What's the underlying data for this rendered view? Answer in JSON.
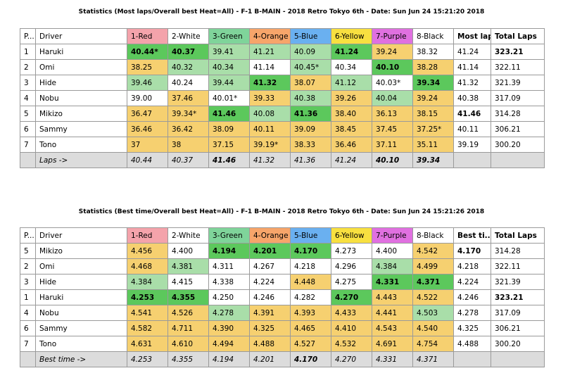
{
  "tables": [
    {
      "title": "Statistics (Most laps/Overall best Heat=All) - F-1 B-MAIN - 2018 Retro Tokyo 6th - Date: Sun Jun 24 15:21:20 2018",
      "headers": [
        "P...",
        "Driver",
        "1-Red",
        "2-White",
        "3-Green",
        "4-Orange",
        "5-Blue",
        "6-Yellow",
        "7-Purple",
        "8-Black",
        "Most laps",
        "Total Laps"
      ],
      "header_colors": [
        "#ffffff",
        "#ffffff",
        "#f4a3ab",
        "#ffffff",
        "#7fd49a",
        "#f7a56a",
        "#6ab0f0",
        "#f8e040",
        "#e070e0",
        "#ffffff",
        "#ffffff",
        "#ffffff"
      ],
      "rows": [
        {
          "pos": "1",
          "driver": "Haruki",
          "values": [
            "40.44*",
            "40.37",
            "39.41",
            "41.21",
            "40.09",
            "41.24",
            "39.24",
            "38.32"
          ],
          "best": "41.24",
          "total": "323.21",
          "fills": [
            "#5cc85c",
            "#5cc85c",
            "#a9dea9",
            "#a9dea9",
            "#a9dea9",
            "#5cc85c",
            "#f6d070",
            "#ffffff"
          ],
          "bold": [
            true,
            true,
            false,
            false,
            false,
            true,
            false,
            false,
            false,
            true
          ]
        },
        {
          "pos": "2",
          "driver": "Omi",
          "values": [
            "38.25",
            "40.32",
            "40.34",
            "41.14",
            "40.45*",
            "40.34",
            "40.10",
            "38.28"
          ],
          "best": "41.14",
          "total": "322.11",
          "fills": [
            "#f6d070",
            "#a9dea9",
            "#a9dea9",
            "#ffffff",
            "#a9dea9",
            "#ffffff",
            "#5cc85c",
            "#f6d070"
          ],
          "bold": [
            false,
            false,
            false,
            false,
            false,
            false,
            true,
            false,
            false,
            false
          ]
        },
        {
          "pos": "3",
          "driver": "Hide",
          "values": [
            "39.46",
            "40.24",
            "39.44",
            "41.32",
            "38.07",
            "41.12",
            "40.03*",
            "39.34"
          ],
          "best": "41.32",
          "total": "321.39",
          "fills": [
            "#a9dea9",
            "#ffffff",
            "#a9dea9",
            "#5cc85c",
            "#f6d070",
            "#a9dea9",
            "#ffffff",
            "#5cc85c"
          ],
          "bold": [
            false,
            false,
            false,
            true,
            false,
            false,
            false,
            true,
            false,
            false
          ]
        },
        {
          "pos": "4",
          "driver": "Nobu",
          "values": [
            "39.00",
            "37.46",
            "40.01*",
            "39.33",
            "40.38",
            "39.26",
            "40.04",
            "39.24"
          ],
          "best": "40.38",
          "total": "317.09",
          "fills": [
            "#ffffff",
            "#f6d070",
            "#ffffff",
            "#f6d070",
            "#a9dea9",
            "#f6d070",
            "#a9dea9",
            "#f6d070"
          ],
          "bold": [
            false,
            false,
            false,
            false,
            false,
            false,
            false,
            false,
            false,
            false
          ]
        },
        {
          "pos": "5",
          "driver": "Mikizo",
          "values": [
            "36.47",
            "39.34*",
            "41.46",
            "40.08",
            "41.36",
            "38.40",
            "36.13",
            "38.15"
          ],
          "best": "41.46",
          "total": "314.28",
          "fills": [
            "#f6d070",
            "#f6d070",
            "#5cc85c",
            "#a9dea9",
            "#5cc85c",
            "#f6d070",
            "#f6d070",
            "#f6d070"
          ],
          "bold": [
            false,
            false,
            true,
            false,
            true,
            false,
            false,
            false,
            true,
            false
          ]
        },
        {
          "pos": "6",
          "driver": "Sammy",
          "values": [
            "36.46",
            "36.42",
            "38.09",
            "40.11",
            "39.09",
            "38.45",
            "37.45",
            "37.25*"
          ],
          "best": "40.11",
          "total": "306.21",
          "fills": [
            "#f6d070",
            "#f6d070",
            "#f6d070",
            "#f6d070",
            "#f6d070",
            "#f6d070",
            "#f6d070",
            "#f6d070"
          ],
          "bold": [
            false,
            false,
            false,
            false,
            false,
            false,
            false,
            false,
            false,
            false
          ]
        },
        {
          "pos": "7",
          "driver": "Tono",
          "values": [
            "37",
            "38",
            "37.15",
            "39.19*",
            "38.33",
            "36.46",
            "37.11",
            "35.11"
          ],
          "best": "39.19",
          "total": "300.20",
          "fills": [
            "#f6d070",
            "#f6d070",
            "#f6d070",
            "#f6d070",
            "#f6d070",
            "#f6d070",
            "#f6d070",
            "#f6d070"
          ],
          "bold": [
            false,
            false,
            false,
            false,
            false,
            false,
            false,
            false,
            false,
            false
          ]
        }
      ],
      "footer": {
        "label": "Laps ->",
        "values": [
          "40.44",
          "40.37",
          "41.46",
          "41.32",
          "41.36",
          "41.24",
          "40.10",
          "39.34"
        ],
        "bold": [
          false,
          false,
          true,
          false,
          false,
          false,
          true,
          true
        ]
      }
    },
    {
      "title": "Statistics (Best time/Overall best Heat=All) - F-1 B-MAIN - 2018 Retro Tokyo 6th - Date: Sun Jun 24 15:21:26 2018",
      "headers": [
        "P...",
        "Driver",
        "1-Red",
        "2-White",
        "3-Green",
        "4-Orange",
        "5-Blue",
        "6-Yellow",
        "7-Purple",
        "8-Black",
        "Best ti...",
        "Total Laps"
      ],
      "header_colors": [
        "#ffffff",
        "#ffffff",
        "#f4a3ab",
        "#ffffff",
        "#7fd49a",
        "#f7a56a",
        "#6ab0f0",
        "#f8e040",
        "#e070e0",
        "#ffffff",
        "#ffffff",
        "#ffffff"
      ],
      "rows": [
        {
          "pos": "5",
          "driver": "Mikizo",
          "values": [
            "4.456",
            "4.400",
            "4.194",
            "4.201",
            "4.170",
            "4.273",
            "4.400",
            "4.542"
          ],
          "best": "4.170",
          "total": "314.28",
          "fills": [
            "#f6d070",
            "#ffffff",
            "#5cc85c",
            "#5cc85c",
            "#5cc85c",
            "#ffffff",
            "#ffffff",
            "#f6d070"
          ],
          "bold": [
            false,
            false,
            true,
            true,
            true,
            false,
            false,
            false,
            true,
            false
          ]
        },
        {
          "pos": "2",
          "driver": "Omi",
          "values": [
            "4.468",
            "4.381",
            "4.311",
            "4.267",
            "4.218",
            "4.296",
            "4.384",
            "4.499"
          ],
          "best": "4.218",
          "total": "322.11",
          "fills": [
            "#f6d070",
            "#a9dea9",
            "#ffffff",
            "#ffffff",
            "#ffffff",
            "#ffffff",
            "#a9dea9",
            "#f6d070"
          ],
          "bold": [
            false,
            false,
            false,
            false,
            false,
            false,
            false,
            false,
            false,
            false
          ]
        },
        {
          "pos": "3",
          "driver": "Hide",
          "values": [
            "4.384",
            "4.415",
            "4.338",
            "4.224",
            "4.448",
            "4.275",
            "4.331",
            "4.371"
          ],
          "best": "4.224",
          "total": "321.39",
          "fills": [
            "#a9dea9",
            "#ffffff",
            "#ffffff",
            "#ffffff",
            "#f6d070",
            "#ffffff",
            "#5cc85c",
            "#5cc85c"
          ],
          "bold": [
            false,
            false,
            false,
            false,
            false,
            false,
            true,
            true,
            false,
            false
          ]
        },
        {
          "pos": "1",
          "driver": "Haruki",
          "values": [
            "4.253",
            "4.355",
            "4.250",
            "4.246",
            "4.282",
            "4.270",
            "4.443",
            "4.522"
          ],
          "best": "4.246",
          "total": "323.21",
          "fills": [
            "#5cc85c",
            "#5cc85c",
            "#ffffff",
            "#ffffff",
            "#ffffff",
            "#5cc85c",
            "#f6d070",
            "#f6d070"
          ],
          "bold": [
            true,
            true,
            false,
            false,
            false,
            true,
            false,
            false,
            false,
            true
          ]
        },
        {
          "pos": "4",
          "driver": "Nobu",
          "values": [
            "4.541",
            "4.526",
            "4.278",
            "4.391",
            "4.393",
            "4.433",
            "4.441",
            "4.503"
          ],
          "best": "4.278",
          "total": "317.09",
          "fills": [
            "#f6d070",
            "#f6d070",
            "#a9dea9",
            "#f6d070",
            "#f6d070",
            "#f6d070",
            "#f6d070",
            "#a9dea9"
          ],
          "bold": [
            false,
            false,
            false,
            false,
            false,
            false,
            false,
            false,
            false,
            false
          ]
        },
        {
          "pos": "6",
          "driver": "Sammy",
          "values": [
            "4.582",
            "4.711",
            "4.390",
            "4.325",
            "4.465",
            "4.410",
            "4.543",
            "4.540"
          ],
          "best": "4.325",
          "total": "306.21",
          "fills": [
            "#f6d070",
            "#f6d070",
            "#f6d070",
            "#f6d070",
            "#f6d070",
            "#f6d070",
            "#f6d070",
            "#f6d070"
          ],
          "bold": [
            false,
            false,
            false,
            false,
            false,
            false,
            false,
            false,
            false,
            false
          ]
        },
        {
          "pos": "7",
          "driver": "Tono",
          "values": [
            "4.631",
            "4.610",
            "4.494",
            "4.488",
            "4.527",
            "4.532",
            "4.691",
            "4.754"
          ],
          "best": "4.488",
          "total": "300.20",
          "fills": [
            "#f6d070",
            "#f6d070",
            "#f6d070",
            "#f6d070",
            "#f6d070",
            "#f6d070",
            "#f6d070",
            "#f6d070"
          ],
          "bold": [
            false,
            false,
            false,
            false,
            false,
            false,
            false,
            false,
            false,
            false
          ]
        }
      ],
      "footer": {
        "label": "Best time ->",
        "values": [
          "4.253",
          "4.355",
          "4.194",
          "4.201",
          "4.170",
          "4.270",
          "4.331",
          "4.371"
        ],
        "bold": [
          false,
          false,
          false,
          false,
          true,
          false,
          false,
          false
        ]
      }
    }
  ]
}
